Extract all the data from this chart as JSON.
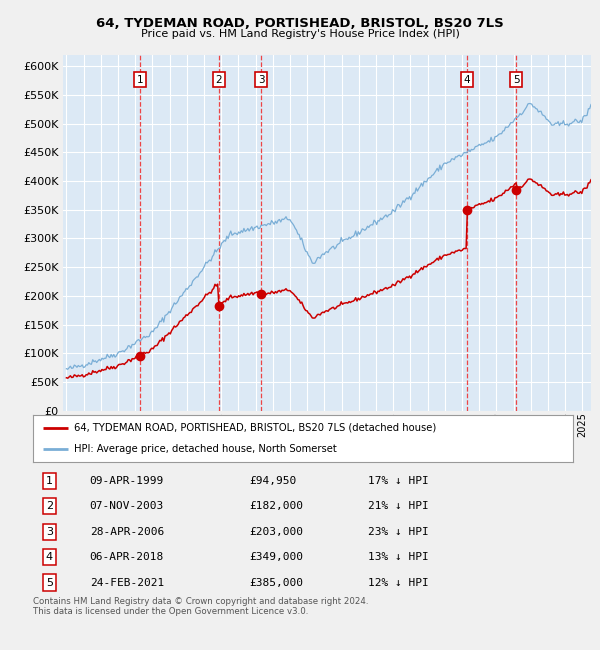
{
  "title": "64, TYDEMAN ROAD, PORTISHEAD, BRISTOL, BS20 7LS",
  "subtitle": "Price paid vs. HM Land Registry's House Price Index (HPI)",
  "ylim": [
    0,
    620000
  ],
  "yticks": [
    0,
    50000,
    100000,
    150000,
    200000,
    250000,
    300000,
    350000,
    400000,
    450000,
    500000,
    550000,
    600000
  ],
  "xlim_start": 1994.8,
  "xlim_end": 2025.5,
  "bg_color": "#dce9f5",
  "fig_color": "#f0f0f0",
  "grid_color": "#ffffff",
  "red_line_color": "#cc0000",
  "blue_line_color": "#7aaed6",
  "sale_marker_color": "#cc0000",
  "dashed_line_color": "#ee3333",
  "legend_text1": "64, TYDEMAN ROAD, PORTISHEAD, BRISTOL, BS20 7LS (detached house)",
  "legend_text2": "HPI: Average price, detached house, North Somerset",
  "footer_text": "Contains HM Land Registry data © Crown copyright and database right 2024.\nThis data is licensed under the Open Government Licence v3.0.",
  "sales": [
    {
      "num": 1,
      "date_label": "09-APR-1999",
      "price": 94950,
      "price_label": "£94,950",
      "pct": "17% ↓ HPI",
      "year": 1999.27
    },
    {
      "num": 2,
      "date_label": "07-NOV-2003",
      "price": 182000,
      "price_label": "£182,000",
      "pct": "21% ↓ HPI",
      "year": 2003.85
    },
    {
      "num": 3,
      "date_label": "28-APR-2006",
      "price": 203000,
      "price_label": "£203,000",
      "pct": "23% ↓ HPI",
      "year": 2006.33
    },
    {
      "num": 4,
      "date_label": "06-APR-2018",
      "price": 349000,
      "price_label": "£349,000",
      "pct": "13% ↓ HPI",
      "year": 2018.27
    },
    {
      "num": 5,
      "date_label": "24-FEB-2021",
      "price": 385000,
      "price_label": "£385,000",
      "pct": "12% ↓ HPI",
      "year": 2021.15
    }
  ]
}
